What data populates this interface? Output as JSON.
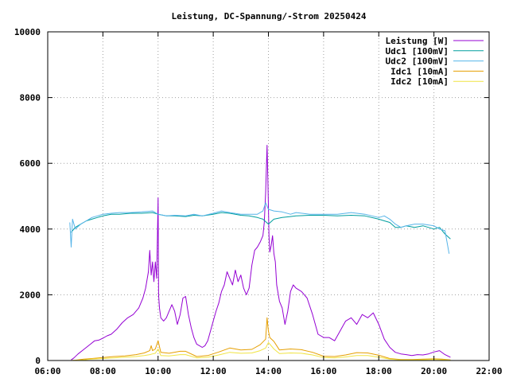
{
  "chart_data": {
    "type": "line",
    "title": "Leistung, DC-Spannung/-Strom 20250424",
    "xlabel": "",
    "ylabel": "",
    "x_unit": "hours of day",
    "xlim": [
      6,
      22
    ],
    "ylim": [
      0,
      10000
    ],
    "x_ticks": [
      6,
      8,
      10,
      12,
      14,
      16,
      18,
      20,
      22
    ],
    "x_tick_labels": [
      "06:00",
      "08:00",
      "10:00",
      "12:00",
      "14:00",
      "16:00",
      "18:00",
      "20:00",
      "22:00"
    ],
    "y_ticks": [
      0,
      2000,
      4000,
      6000,
      8000,
      10000
    ],
    "y_tick_labels": [
      "0",
      "2000",
      "4000",
      "6000",
      "8000",
      "10000"
    ],
    "grid": true,
    "legend_position": "top-right",
    "series": [
      {
        "name": "Leistung [W]",
        "color": "#9400d3",
        "x": [
          6.85,
          6.95,
          7.1,
          7.25,
          7.4,
          7.55,
          7.7,
          7.85,
          8.0,
          8.15,
          8.3,
          8.5,
          8.7,
          8.9,
          9.1,
          9.3,
          9.45,
          9.55,
          9.65,
          9.7,
          9.75,
          9.8,
          9.85,
          9.9,
          9.95,
          10.0,
          10.02,
          10.05,
          10.1,
          10.2,
          10.3,
          10.4,
          10.5,
          10.6,
          10.7,
          10.8,
          10.9,
          11.0,
          11.1,
          11.2,
          11.3,
          11.4,
          11.5,
          11.6,
          11.7,
          11.8,
          11.9,
          12.0,
          12.1,
          12.2,
          12.3,
          12.4,
          12.5,
          12.6,
          12.7,
          12.8,
          12.9,
          13.0,
          13.1,
          13.2,
          13.3,
          13.4,
          13.5,
          13.6,
          13.7,
          13.8,
          13.85,
          13.9,
          13.95,
          13.98,
          14.0,
          14.02,
          14.05,
          14.1,
          14.15,
          14.2,
          14.25,
          14.3,
          14.4,
          14.5,
          14.6,
          14.7,
          14.8,
          14.9,
          15.0,
          15.2,
          15.4,
          15.6,
          15.8,
          16.0,
          16.2,
          16.4,
          16.6,
          16.8,
          17.0,
          17.2,
          17.4,
          17.6,
          17.8,
          18.0,
          18.2,
          18.4,
          18.6,
          18.8,
          19.0,
          19.2,
          19.4,
          19.6,
          19.8,
          20.0,
          20.2,
          20.4,
          20.6
        ],
        "values": [
          20,
          80,
          200,
          300,
          400,
          500,
          600,
          620,
          680,
          750,
          800,
          950,
          1150,
          1300,
          1400,
          1600,
          1900,
          2200,
          2700,
          3350,
          2600,
          3000,
          2400,
          3000,
          2500,
          4950,
          2000,
          1600,
          1300,
          1200,
          1300,
          1500,
          1700,
          1500,
          1100,
          1400,
          1900,
          1950,
          1400,
          1000,
          700,
          500,
          450,
          400,
          450,
          600,
          900,
          1200,
          1500,
          1750,
          2100,
          2300,
          2700,
          2500,
          2300,
          2750,
          2400,
          2600,
          2200,
          2000,
          2200,
          2900,
          3350,
          3450,
          3600,
          3800,
          4200,
          5100,
          6550,
          5500,
          4700,
          3800,
          3300,
          3500,
          3800,
          3250,
          3000,
          2300,
          1800,
          1600,
          1100,
          1500,
          2100,
          2300,
          2200,
          2100,
          1900,
          1400,
          800,
          700,
          700,
          600,
          900,
          1200,
          1300,
          1100,
          1400,
          1300,
          1450,
          1100,
          650,
          400,
          250,
          200,
          180,
          150,
          180,
          170,
          200,
          260,
          300,
          180,
          100
        ]
      },
      {
        "name": "Udc1 [100mV]",
        "color": "#009e9e",
        "x": [
          6.85,
          7.0,
          7.2,
          7.4,
          7.6,
          7.8,
          8.0,
          8.3,
          8.6,
          9.0,
          9.4,
          9.8,
          10.0,
          10.3,
          10.6,
          11.0,
          11.3,
          11.6,
          12.0,
          12.3,
          12.6,
          13.0,
          13.3,
          13.6,
          13.8,
          14.0,
          14.2,
          14.5,
          14.8,
          15.0,
          15.5,
          16.0,
          16.5,
          17.0,
          17.5,
          18.0,
          18.2,
          18.4,
          18.6,
          18.8,
          19.0,
          19.3,
          19.6,
          20.0,
          20.2,
          20.4,
          20.6
        ],
        "values": [
          3900,
          4050,
          4150,
          4250,
          4300,
          4350,
          4400,
          4450,
          4450,
          4480,
          4480,
          4500,
          4450,
          4400,
          4400,
          4380,
          4420,
          4400,
          4450,
          4500,
          4480,
          4420,
          4400,
          4350,
          4300,
          4150,
          4300,
          4350,
          4380,
          4400,
          4420,
          4420,
          4400,
          4420,
          4400,
          4300,
          4250,
          4200,
          4050,
          4050,
          4100,
          4050,
          4100,
          4000,
          4050,
          3850,
          3700
        ]
      },
      {
        "name": "Udc2 [100mV]",
        "color": "#56b4e9",
        "x": [
          6.8,
          6.85,
          6.9,
          7.0,
          7.2,
          7.4,
          7.6,
          7.8,
          8.0,
          8.3,
          8.6,
          9.0,
          9.4,
          9.8,
          10.0,
          10.3,
          10.6,
          11.0,
          11.3,
          11.6,
          12.0,
          12.3,
          12.6,
          13.0,
          13.3,
          13.6,
          13.8,
          13.9,
          14.0,
          14.2,
          14.5,
          14.8,
          15.0,
          15.5,
          16.0,
          16.5,
          17.0,
          17.5,
          18.0,
          18.2,
          18.4,
          18.6,
          18.8,
          19.0,
          19.3,
          19.6,
          20.0,
          20.2,
          20.4,
          20.55
        ],
        "values": [
          4200,
          3450,
          4300,
          4000,
          4150,
          4250,
          4350,
          4400,
          4450,
          4480,
          4500,
          4500,
          4520,
          4550,
          4450,
          4400,
          4420,
          4400,
          4450,
          4400,
          4480,
          4550,
          4500,
          4450,
          4450,
          4450,
          4550,
          4800,
          4600,
          4550,
          4520,
          4450,
          4500,
          4450,
          4450,
          4450,
          4500,
          4450,
          4350,
          4400,
          4300,
          4150,
          4050,
          4100,
          4150,
          4150,
          4100,
          4000,
          3950,
          3250
        ]
      },
      {
        "name": "Idc1 [10mA]",
        "color": "#e69f00",
        "x": [
          6.85,
          7.0,
          7.3,
          7.6,
          8.0,
          8.4,
          8.8,
          9.2,
          9.5,
          9.7,
          9.75,
          9.8,
          9.9,
          10.0,
          10.1,
          10.4,
          10.8,
          11.0,
          11.4,
          11.8,
          12.2,
          12.6,
          13.0,
          13.4,
          13.7,
          13.9,
          13.95,
          14.0,
          14.05,
          14.2,
          14.4,
          14.8,
          15.2,
          15.6,
          16.0,
          16.4,
          16.8,
          17.2,
          17.6,
          18.0,
          18.4,
          18.8,
          19.2,
          19.6,
          20.0,
          20.3,
          20.6
        ],
        "values": [
          0,
          10,
          40,
          60,
          90,
          120,
          140,
          180,
          230,
          300,
          450,
          300,
          350,
          600,
          250,
          220,
          280,
          280,
          120,
          150,
          260,
          380,
          320,
          340,
          480,
          650,
          1300,
          900,
          700,
          580,
          320,
          350,
          330,
          250,
          130,
          120,
          170,
          240,
          230,
          160,
          60,
          30,
          30,
          40,
          50,
          40,
          20
        ]
      },
      {
        "name": "Idc2 [10mA]",
        "color": "#f0e442",
        "x": [
          6.85,
          7.0,
          7.3,
          7.6,
          8.0,
          8.4,
          8.8,
          9.2,
          9.5,
          9.7,
          9.8,
          9.9,
          10.0,
          10.1,
          10.4,
          10.8,
          11.0,
          11.4,
          11.8,
          12.2,
          12.6,
          13.0,
          13.4,
          13.7,
          13.9,
          14.0,
          14.2,
          14.4,
          14.8,
          15.2,
          15.6,
          16.0,
          16.4,
          16.8,
          17.2,
          17.6,
          18.0,
          18.4,
          18.8,
          19.2,
          19.6,
          20.0,
          20.3,
          20.6
        ],
        "values": [
          0,
          5,
          20,
          40,
          60,
          80,
          100,
          120,
          150,
          180,
          200,
          220,
          350,
          150,
          140,
          180,
          180,
          80,
          100,
          170,
          250,
          220,
          230,
          300,
          380,
          550,
          350,
          210,
          230,
          220,
          170,
          90,
          80,
          110,
          150,
          150,
          100,
          40,
          20,
          20,
          25,
          35,
          25,
          10
        ]
      }
    ]
  }
}
